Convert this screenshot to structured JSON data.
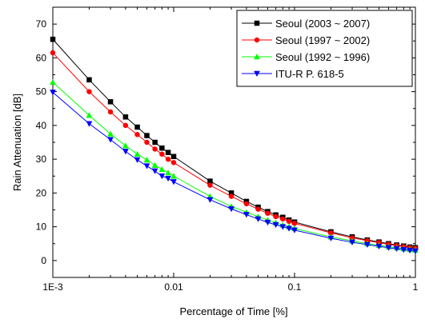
{
  "chart_data": {
    "type": "line",
    "title": "",
    "xlabel": "Percentage of Time [%]",
    "ylabel": "Rain Attenuation [dB]",
    "x_scale": "log",
    "xlim": [
      0.001,
      1
    ],
    "ylim": [
      -5,
      75
    ],
    "x_ticks": [
      {
        "value": 0.001,
        "label": "1E-3"
      },
      {
        "value": 0.01,
        "label": "0.01"
      },
      {
        "value": 0.1,
        "label": "0.1"
      },
      {
        "value": 1,
        "label": "1"
      }
    ],
    "y_ticks": [
      0,
      10,
      20,
      30,
      40,
      50,
      60,
      70
    ],
    "y_tick_labels": [
      "0",
      "10",
      "20",
      "30",
      "40",
      "50",
      "60",
      "70"
    ],
    "grid": false,
    "legend_position": "top-right",
    "x": [
      0.001,
      0.002,
      0.003,
      0.004,
      0.005,
      0.006,
      0.007,
      0.008,
      0.009,
      0.01,
      0.02,
      0.03,
      0.04,
      0.05,
      0.06,
      0.07,
      0.08,
      0.09,
      0.1,
      0.2,
      0.3,
      0.4,
      0.5,
      0.6,
      0.7,
      0.8,
      0.9,
      1
    ],
    "series": [
      {
        "name": "Seoul (2003 ~ 2007)",
        "color": "#000000",
        "marker": "square",
        "values": [
          65.5,
          53.5,
          47.0,
          42.5,
          39.5,
          37.0,
          35.0,
          33.3,
          32.0,
          30.8,
          23.5,
          20.0,
          17.5,
          15.8,
          14.5,
          13.5,
          12.8,
          12.0,
          11.4,
          8.5,
          7.0,
          6.1,
          5.5,
          5.0,
          4.6,
          4.3,
          4.0,
          3.8
        ]
      },
      {
        "name": "Seoul (1997 ~ 2002)",
        "color": "#ff0000",
        "marker": "circle",
        "values": [
          61.5,
          50.0,
          44.0,
          40.0,
          37.3,
          35.0,
          33.0,
          31.5,
          30.0,
          29.0,
          22.3,
          19.0,
          16.8,
          15.2,
          14.0,
          13.0,
          12.3,
          11.6,
          11.0,
          8.2,
          6.7,
          5.9,
          5.3,
          4.8,
          4.4,
          4.1,
          3.8,
          3.6
        ]
      },
      {
        "name": "Seoul (1992 ~ 1996)",
        "color": "#00ff00",
        "marker": "triangle-up",
        "values": [
          52.8,
          43.0,
          37.5,
          34.0,
          31.5,
          29.8,
          28.2,
          27.0,
          26.0,
          25.0,
          19.0,
          16.0,
          14.3,
          13.0,
          12.0,
          11.2,
          10.5,
          10.0,
          9.5,
          7.0,
          5.8,
          5.0,
          4.5,
          4.1,
          3.8,
          3.5,
          3.3,
          3.1
        ]
      },
      {
        "name": "ITU-R P. 618-5",
        "color": "#0000ff",
        "marker": "triangle-down",
        "values": [
          49.8,
          40.5,
          35.8,
          32.3,
          29.8,
          28.0,
          26.5,
          25.0,
          24.3,
          23.3,
          18.0,
          15.3,
          13.6,
          12.3,
          11.3,
          10.6,
          10.0,
          9.5,
          9.0,
          6.6,
          5.4,
          4.7,
          4.2,
          3.8,
          3.5,
          3.2,
          3.0,
          2.8
        ]
      }
    ]
  }
}
